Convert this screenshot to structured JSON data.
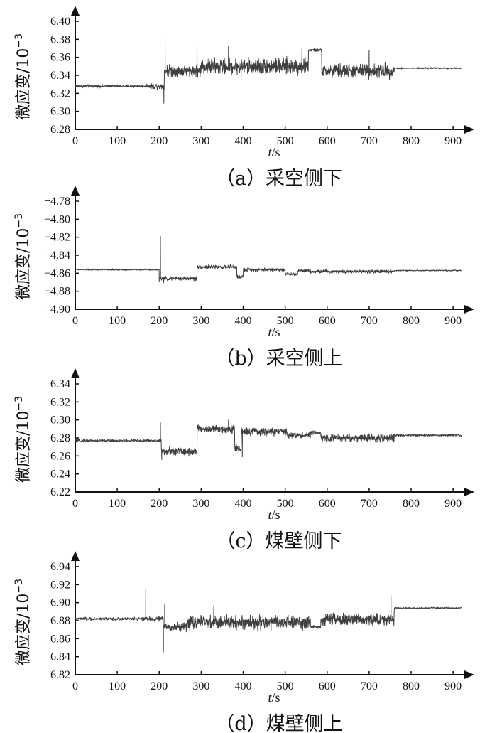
{
  "chart_data": [
    {
      "type": "line",
      "caption": "（a）采空侧下",
      "ylabel": "微应变/10",
      "ylabel_exp": "−3",
      "xlabel_var": "t",
      "xlabel_unit": "/s",
      "xlim": [
        0,
        920
      ],
      "xticks": [
        "0",
        "100",
        "200",
        "300",
        "400",
        "500",
        "600",
        "700",
        "800",
        "900"
      ],
      "ylim": [
        6.28,
        6.4
      ],
      "yticks": [
        "6.28",
        "6.30",
        "6.32",
        "6.34",
        "6.36",
        "6.38",
        "6.40"
      ],
      "series": [
        {
          "color": "#3f3f3f",
          "segments": [
            {
              "t0": 0,
              "t1": 180,
              "mean": 6.328,
              "amp": 0.0015
            },
            {
              "t0": 180,
              "t1": 212,
              "mean": 6.328,
              "amp": 0.003
            },
            {
              "t0": 212,
              "t1": 300,
              "mean": 6.345,
              "amp": 0.006
            },
            {
              "t0": 300,
              "t1": 555,
              "mean": 6.35,
              "amp": 0.008
            },
            {
              "t0": 555,
              "t1": 587,
              "mean": 6.368,
              "amp": 0.0015
            },
            {
              "t0": 587,
              "t1": 760,
              "mean": 6.345,
              "amp": 0.007
            },
            {
              "t0": 760,
              "t1": 920,
              "mean": 6.348,
              "amp": 0.0008
            }
          ],
          "spikes": [
            {
              "t": 180,
              "v": 6.322
            },
            {
              "t": 211,
              "v": 6.309
            },
            {
              "t": 214,
              "v": 6.381
            },
            {
              "t": 290,
              "v": 6.372
            },
            {
              "t": 365,
              "v": 6.373
            },
            {
              "t": 395,
              "v": 6.335
            },
            {
              "t": 540,
              "v": 6.37
            },
            {
              "t": 700,
              "v": 6.368
            }
          ]
        }
      ]
    },
    {
      "type": "line",
      "caption": "（b）采空侧上",
      "ylabel": "微应变/10",
      "ylabel_exp": "−3",
      "xlabel_var": "t",
      "xlabel_unit": "/s",
      "xlim": [
        0,
        920
      ],
      "xticks": [
        "0",
        "100",
        "200",
        "300",
        "400",
        "500",
        "600",
        "700",
        "800",
        "900"
      ],
      "ylim": [
        -4.9,
        -4.78
      ],
      "yticks": [
        "−4.90",
        "−4.88",
        "−4.86",
        "−4.84",
        "−4.82",
        "−4.80",
        "−4.78"
      ],
      "series": [
        {
          "color": "#3f3f3f",
          "segments": [
            {
              "t0": 0,
              "t1": 200,
              "mean": -4.856,
              "amp": 0.0008
            },
            {
              "t0": 200,
              "t1": 290,
              "mean": -4.866,
              "amp": 0.002
            },
            {
              "t0": 290,
              "t1": 385,
              "mean": -4.853,
              "amp": 0.0018
            },
            {
              "t0": 385,
              "t1": 400,
              "mean": -4.864,
              "amp": 0.002
            },
            {
              "t0": 400,
              "t1": 500,
              "mean": -4.856,
              "amp": 0.0018
            },
            {
              "t0": 500,
              "t1": 530,
              "mean": -4.861,
              "amp": 0.0015
            },
            {
              "t0": 530,
              "t1": 560,
              "mean": -4.857,
              "amp": 0.0015
            },
            {
              "t0": 560,
              "t1": 760,
              "mean": -4.858,
              "amp": 0.0018
            },
            {
              "t0": 760,
              "t1": 920,
              "mean": -4.857,
              "amp": 0.0006
            }
          ],
          "spikes": [
            {
              "t": 200,
              "v": -4.869
            },
            {
              "t": 203,
              "v": -4.819
            },
            {
              "t": 210,
              "v": -4.871
            }
          ]
        }
      ]
    },
    {
      "type": "line",
      "caption": "（c）煤壁侧下",
      "ylabel": "微应变/10",
      "ylabel_exp": "−3",
      "xlabel_var": "t",
      "xlabel_unit": "/s",
      "xlim": [
        0,
        920
      ],
      "xticks": [
        "0",
        "100",
        "200",
        "300",
        "400",
        "500",
        "600",
        "700",
        "800",
        "900"
      ],
      "ylim": [
        6.22,
        6.34
      ],
      "yticks": [
        "6.22",
        "6.24",
        "6.26",
        "6.28",
        "6.30",
        "6.32",
        "6.34"
      ],
      "series": [
        {
          "color": "#3f3f3f",
          "segments": [
            {
              "t0": 0,
              "t1": 205,
              "mean": 6.277,
              "amp": 0.0015
            },
            {
              "t0": 205,
              "t1": 290,
              "mean": 6.265,
              "amp": 0.004
            },
            {
              "t0": 290,
              "t1": 380,
              "mean": 6.29,
              "amp": 0.004
            },
            {
              "t0": 380,
              "t1": 395,
              "mean": 6.268,
              "amp": 0.004
            },
            {
              "t0": 395,
              "t1": 505,
              "mean": 6.287,
              "amp": 0.004
            },
            {
              "t0": 505,
              "t1": 560,
              "mean": 6.283,
              "amp": 0.003
            },
            {
              "t0": 560,
              "t1": 585,
              "mean": 6.286,
              "amp": 0.002
            },
            {
              "t0": 585,
              "t1": 760,
              "mean": 6.28,
              "amp": 0.004
            },
            {
              "t0": 760,
              "t1": 920,
              "mean": 6.283,
              "amp": 0.0012
            }
          ],
          "spikes": [
            {
              "t": 203,
              "v": 6.297
            },
            {
              "t": 206,
              "v": 6.256
            },
            {
              "t": 365,
              "v": 6.3
            },
            {
              "t": 398,
              "v": 6.259
            }
          ]
        }
      ]
    },
    {
      "type": "line",
      "caption": "（d）煤壁侧上",
      "ylabel": "微应变/10",
      "ylabel_exp": "−3",
      "xlabel_var": "t",
      "xlabel_unit": "/s",
      "xlim": [
        0,
        920
      ],
      "xticks": [
        "0",
        "100",
        "200",
        "300",
        "400",
        "500",
        "600",
        "700",
        "800",
        "900"
      ],
      "ylim": [
        6.82,
        6.94
      ],
      "yticks": [
        "6.82",
        "6.84",
        "6.86",
        "6.88",
        "6.90",
        "6.92",
        "6.94"
      ],
      "series": [
        {
          "color": "#3f3f3f",
          "segments": [
            {
              "t0": 0,
              "t1": 175,
              "mean": 6.882,
              "amp": 0.0015
            },
            {
              "t0": 175,
              "t1": 210,
              "mean": 6.882,
              "amp": 0.0025
            },
            {
              "t0": 210,
              "t1": 265,
              "mean": 6.873,
              "amp": 0.004
            },
            {
              "t0": 265,
              "t1": 560,
              "mean": 6.878,
              "amp": 0.007
            },
            {
              "t0": 560,
              "t1": 585,
              "mean": 6.873,
              "amp": 0.0015
            },
            {
              "t0": 585,
              "t1": 760,
              "mean": 6.881,
              "amp": 0.006
            },
            {
              "t0": 760,
              "t1": 920,
              "mean": 6.894,
              "amp": 0.0008
            }
          ],
          "spikes": [
            {
              "t": 168,
              "v": 6.915
            },
            {
              "t": 210,
              "v": 6.845
            },
            {
              "t": 213,
              "v": 6.898
            },
            {
              "t": 330,
              "v": 6.896
            },
            {
              "t": 752,
              "v": 6.908
            }
          ]
        }
      ]
    }
  ]
}
